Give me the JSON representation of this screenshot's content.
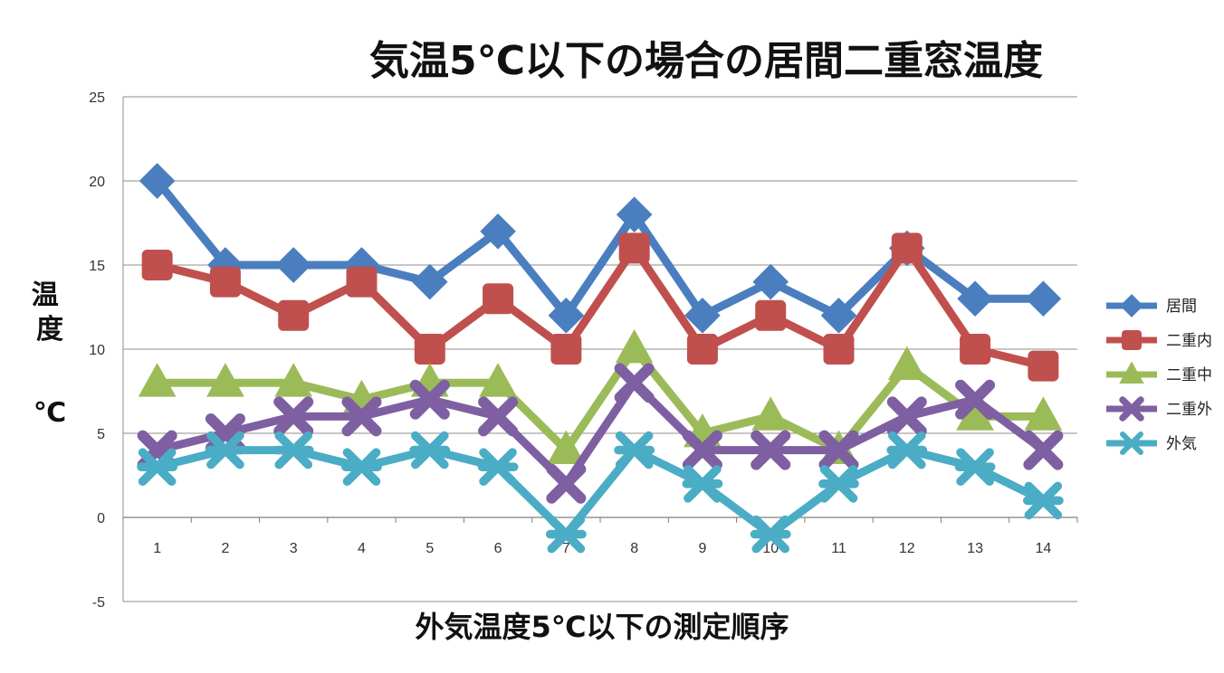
{
  "chart_data": {
    "type": "line",
    "title": "気温5℃以下の場合の居間二重窓温度",
    "xlabel": "外気温度5℃以下の測定順序",
    "ylabel_top": "温度",
    "ylabel_unit": "℃",
    "categories": [
      "1",
      "2",
      "3",
      "4",
      "5",
      "6",
      "7",
      "8",
      "9",
      "10",
      "11",
      "12",
      "13",
      "14"
    ],
    "ylim": [
      -5,
      25
    ],
    "yticks": [
      "-5",
      "0",
      "5",
      "10",
      "15",
      "20",
      "25"
    ],
    "grid": true,
    "legend_position": "right",
    "series": [
      {
        "name": "居間",
        "color": "#4a7ebf",
        "marker": "diamond",
        "values": [
          20,
          15,
          15,
          15,
          14,
          17,
          12,
          18,
          12,
          14,
          12,
          16,
          13,
          13
        ]
      },
      {
        "name": "二重内",
        "color": "#c0504d",
        "marker": "square",
        "values": [
          15,
          14,
          12,
          14,
          10,
          13,
          10,
          16,
          10,
          12,
          10,
          16,
          10,
          9
        ]
      },
      {
        "name": "二重中",
        "color": "#9bbb59",
        "marker": "triangle",
        "values": [
          8,
          8,
          8,
          7,
          8,
          8,
          4,
          10,
          5,
          6,
          4,
          9,
          6,
          6
        ]
      },
      {
        "name": "二重外",
        "color": "#7e5fa1",
        "marker": "x",
        "values": [
          4,
          5,
          6,
          6,
          7,
          6,
          2,
          8,
          4,
          4,
          4,
          6,
          7,
          4
        ]
      },
      {
        "name": "外気",
        "color": "#4bacc6",
        "marker": "star",
        "values": [
          3,
          4,
          4,
          3,
          4,
          3,
          -1,
          4,
          2,
          -1,
          2,
          4,
          3,
          1
        ]
      }
    ]
  }
}
